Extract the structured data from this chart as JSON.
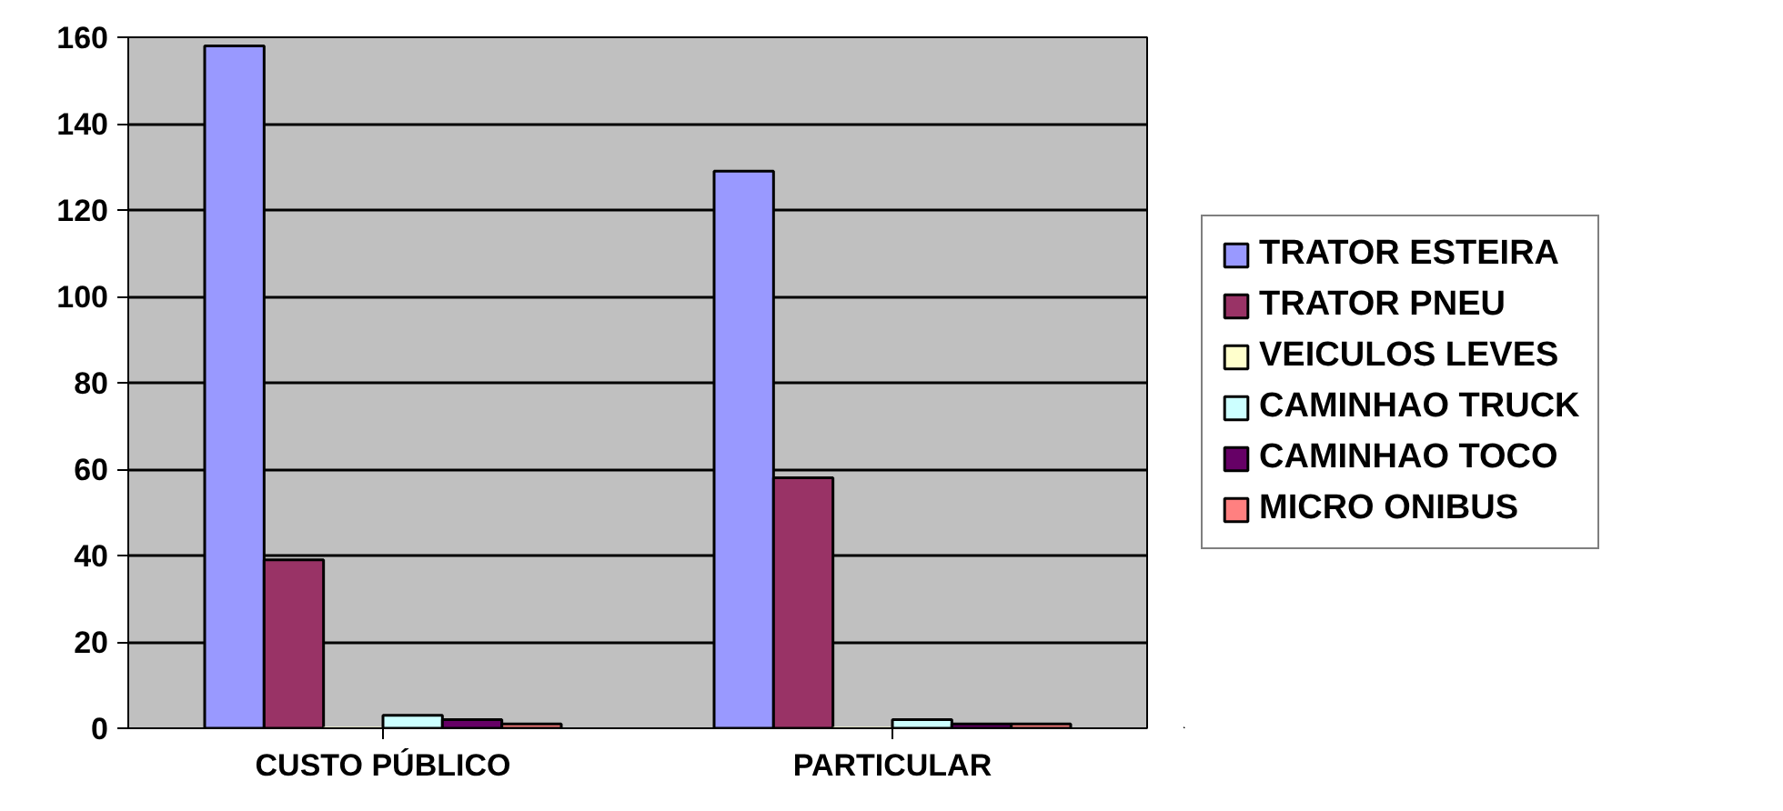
{
  "chart_data": {
    "type": "bar",
    "categories": [
      "CUSTO PÚBLICO",
      "PARTICULAR"
    ],
    "series": [
      {
        "name": "TRATOR ESTEIRA",
        "color": "#9999ff",
        "values": [
          158,
          129
        ]
      },
      {
        "name": "TRATOR PNEU",
        "color": "#993366",
        "values": [
          39,
          58
        ]
      },
      {
        "name": "VEICULOS LEVES",
        "color": "#ffffcc",
        "values": [
          0,
          0
        ]
      },
      {
        "name": "CAMINHAO TRUCK",
        "color": "#ccffff",
        "values": [
          3,
          2
        ]
      },
      {
        "name": "CAMINHAO TOCO",
        "color": "#660066",
        "values": [
          2,
          1
        ]
      },
      {
        "name": "MICRO ONIBUS",
        "color": "#ff8080",
        "values": [
          1,
          1
        ]
      }
    ],
    "ylim": [
      0,
      160
    ],
    "yticks": [
      0,
      20,
      40,
      60,
      80,
      100,
      120,
      140,
      160
    ],
    "grid": "y",
    "legend": "right"
  }
}
